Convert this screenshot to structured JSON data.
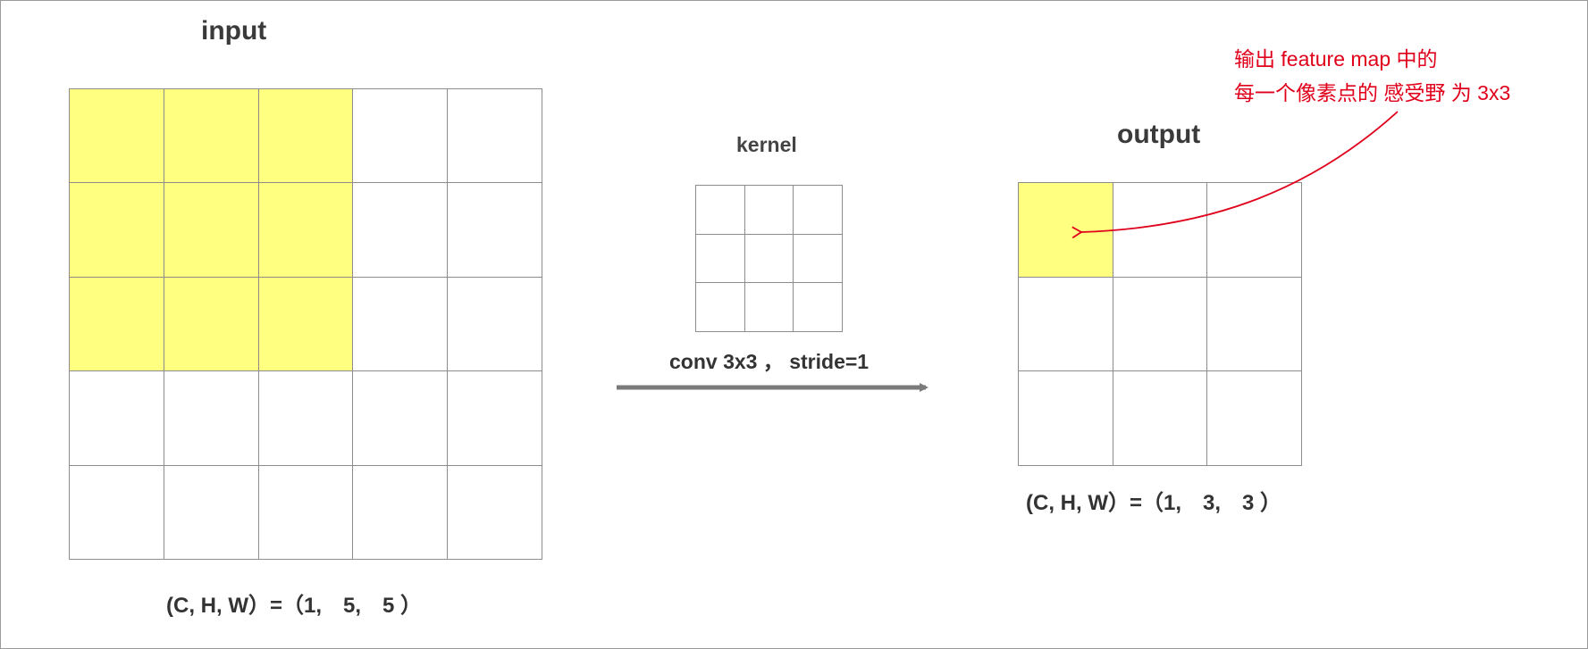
{
  "input": {
    "title": "input",
    "rows": 5,
    "cols": 5,
    "highlighted": [
      [
        0,
        0
      ],
      [
        0,
        1
      ],
      [
        0,
        2
      ],
      [
        1,
        0
      ],
      [
        1,
        1
      ],
      [
        1,
        2
      ],
      [
        2,
        0
      ],
      [
        2,
        1
      ],
      [
        2,
        2
      ]
    ],
    "shape_label": "(C, H, W）=（1,　5,　5 ）"
  },
  "kernel": {
    "title": "kernel",
    "rows": 3,
    "cols": 3
  },
  "operation": {
    "label": "conv 3x3 ，  stride=1"
  },
  "output": {
    "title": "output",
    "rows": 3,
    "cols": 3,
    "highlighted": [
      [
        0,
        0
      ]
    ],
    "shape_label": "(C, H, W）=（1,　3,　3 ）"
  },
  "annotation": {
    "line1": "输出 feature map 中的",
    "line2": "每一个像素点的 感受野 为 3x3"
  },
  "colors": {
    "highlight": "#ffff80",
    "grid_line": "#8c8c8c",
    "arrow": "#7a7a7a",
    "annotation": "#e0001b"
  }
}
